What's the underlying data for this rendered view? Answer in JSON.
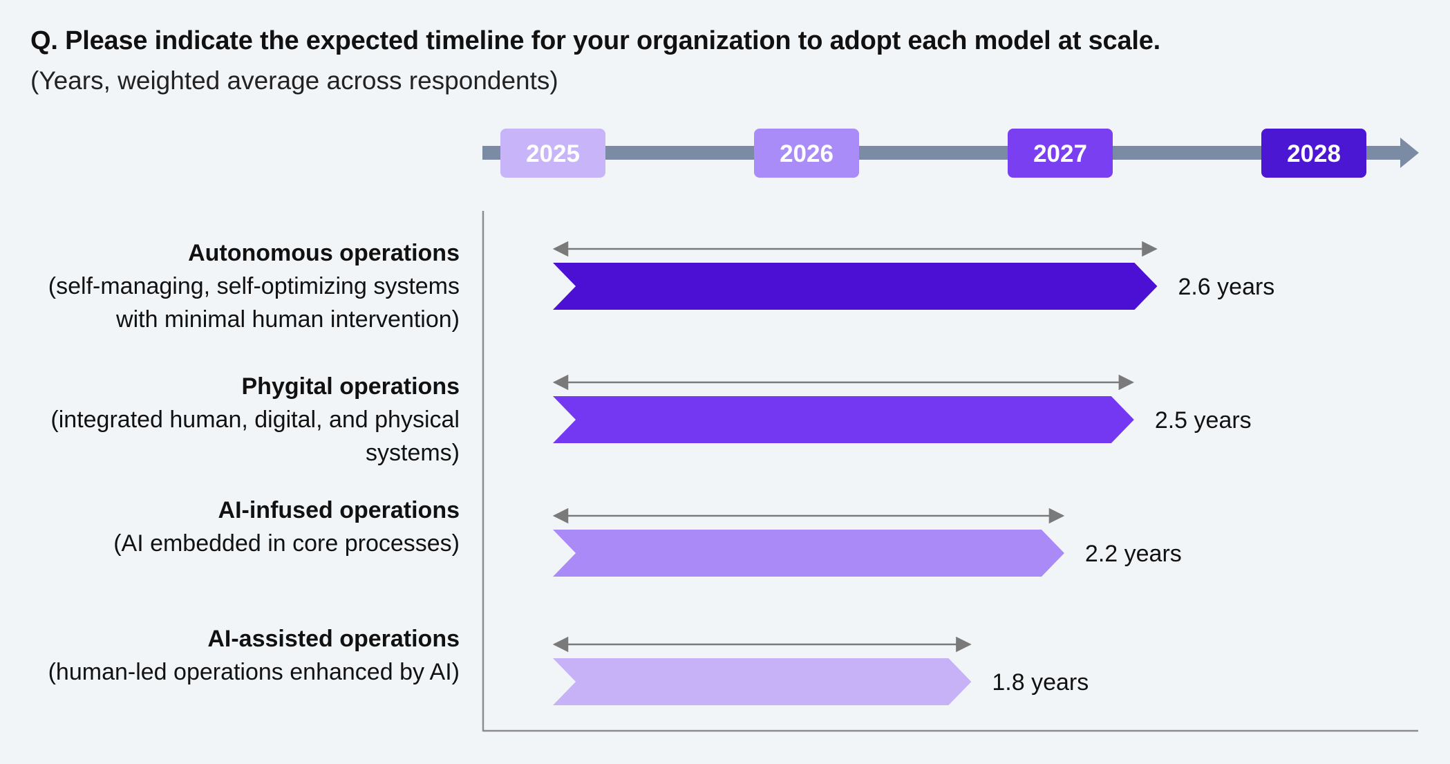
{
  "title": "Q. Please indicate the expected timeline for your organization to adopt each model at scale.",
  "subtitle": "(Years, weighted average across respondents)",
  "chart_data": {
    "type": "bar",
    "orientation": "horizontal",
    "timeline_years": [
      {
        "label": "2025",
        "color": "#c8b4f8"
      },
      {
        "label": "2026",
        "color": "#a98cf7"
      },
      {
        "label": "2027",
        "color": "#7a3ff0"
      },
      {
        "label": "2028",
        "color": "#4c17d2"
      }
    ],
    "categories": [
      {
        "name": "Autonomous operations",
        "description": "(self-managing, self-optimizing systems with minimal human intervention)",
        "value": 2.6,
        "value_label": "2.6 years",
        "color": "#4c10d4"
      },
      {
        "name": "Phygital operations",
        "description": "(integrated human, digital, and physical systems)",
        "value": 2.5,
        "value_label": "2.5 years",
        "color": "#7438f2"
      },
      {
        "name": "AI-infused operations",
        "description": "(AI embedded in core processes)",
        "value": 2.2,
        "value_label": "2.2 years",
        "color": "#a98af7"
      },
      {
        "name": "AI-assisted operations",
        "description": "(human-led operations enhanced by AI)",
        "value": 1.8,
        "value_label": "1.8 years",
        "color": "#c7b2f8"
      }
    ],
    "xlim": [
      0,
      3
    ],
    "xunit": "years"
  }
}
